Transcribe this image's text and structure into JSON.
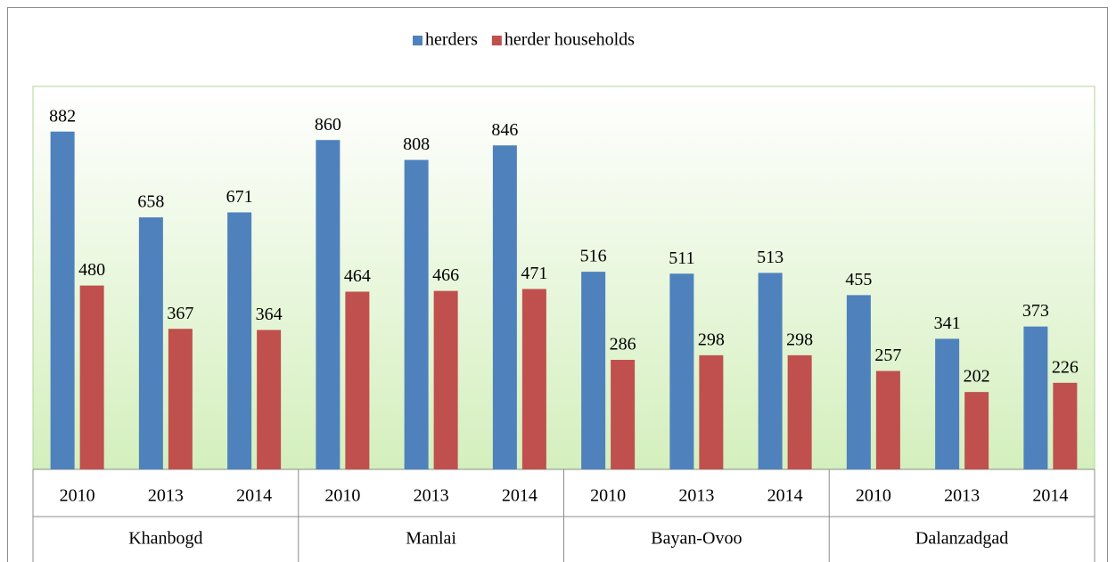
{
  "chart_data": {
    "type": "bar",
    "categories": [
      "2010",
      "2013",
      "2014",
      "2010",
      "2013",
      "2014",
      "2010",
      "2013",
      "2014",
      "2010",
      "2013",
      "2014"
    ],
    "groups": [
      "Khanbogd",
      "Manlai",
      "Bayan-Ovoo",
      "Dalanzadgad"
    ],
    "series": [
      {
        "name": "herders",
        "color": "#4f81bd",
        "values": [
          882,
          658,
          671,
          860,
          808,
          846,
          516,
          511,
          513,
          455,
          341,
          373
        ]
      },
      {
        "name": "herder households",
        "color": "#c0504d",
        "values": [
          480,
          367,
          364,
          464,
          466,
          471,
          286,
          298,
          298,
          257,
          202,
          226
        ]
      }
    ],
    "ylim": [
      0,
      1000
    ],
    "legend": "top"
  }
}
